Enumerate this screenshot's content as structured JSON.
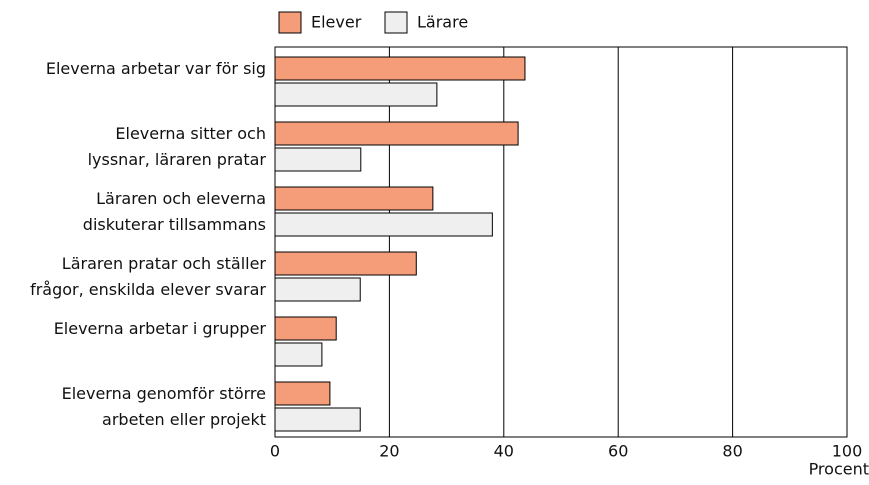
{
  "chart_data": {
    "type": "bar",
    "orientation": "horizontal",
    "categories": [
      [
        "Eleverna arbetar var för sig"
      ],
      [
        "Eleverna sitter och",
        "lyssnar, läraren pratar"
      ],
      [
        "Läraren och eleverna",
        "diskuterar tillsammans"
      ],
      [
        "Läraren pratar och ställer",
        "frågor, enskilda elever svarar"
      ],
      [
        "Eleverna arbetar i grupper"
      ],
      [
        "Eleverna genomför större",
        "arbeten eller projekt"
      ]
    ],
    "series": [
      {
        "name": "Elever",
        "color": "#f49d78",
        "values": [
          43.7,
          42.5,
          27.6,
          24.7,
          10.7,
          9.6
        ]
      },
      {
        "name": "Lärare",
        "color": "#efeff0",
        "values": [
          28.3,
          15.0,
          38.0,
          14.9,
          8.2,
          14.9
        ]
      }
    ],
    "xlim": [
      0,
      100
    ],
    "xticks": [
      0,
      20,
      40,
      60,
      80,
      100
    ],
    "xlabel": "Procent",
    "grid": true,
    "legend": "top"
  }
}
